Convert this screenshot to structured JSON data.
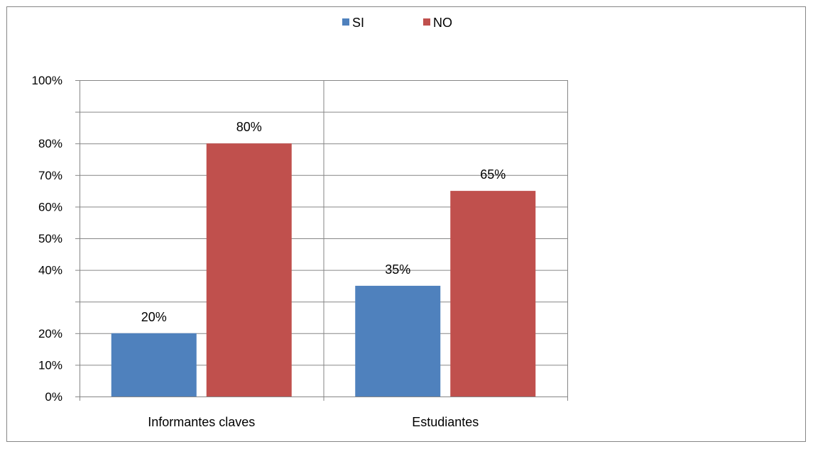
{
  "chart_data": {
    "type": "bar",
    "categories": [
      "Informantes claves",
      "Estudiantes"
    ],
    "series": [
      {
        "name": "SI",
        "values": [
          20,
          35
        ],
        "labels": [
          "20%",
          "35%"
        ],
        "color": "#4F81BD"
      },
      {
        "name": "NO",
        "values": [
          80,
          65
        ],
        "labels": [
          "80%",
          "65%"
        ],
        "color": "#C0504D"
      }
    ],
    "ylim": [
      0,
      100
    ],
    "y_tick_labels": [
      "0%",
      "10%",
      "20%",
      "40%",
      "50%",
      "60%",
      "70%",
      "80%",
      "100%"
    ],
    "gridlines": true,
    "legend_position": "top",
    "title": "",
    "xlabel": "",
    "ylabel": ""
  }
}
